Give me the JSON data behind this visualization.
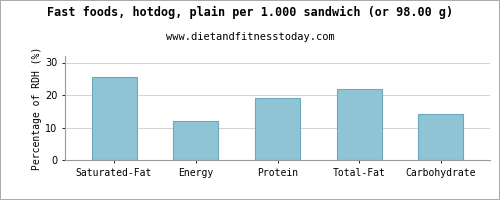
{
  "title": "Fast foods, hotdog, plain per 1.000 sandwich (or 98.00 g)",
  "subtitle": "www.dietandfitnesstoday.com",
  "categories": [
    "Saturated-Fat",
    "Energy",
    "Protein",
    "Total-Fat",
    "Carbohydrate"
  ],
  "values": [
    25.5,
    12.0,
    19.0,
    22.0,
    14.3
  ],
  "bar_color": "#8ec4d4",
  "bar_edge_color": "#6aaabb",
  "ylabel": "Percentage of RDH (%)",
  "ylim": [
    0,
    32
  ],
  "yticks": [
    0,
    10,
    20,
    30
  ],
  "background_color": "#ffffff",
  "grid_color": "#cccccc",
  "title_fontsize": 8.5,
  "subtitle_fontsize": 7.5,
  "tick_fontsize": 7.0,
  "ylabel_fontsize": 7.0,
  "border_color": "#aaaaaa"
}
